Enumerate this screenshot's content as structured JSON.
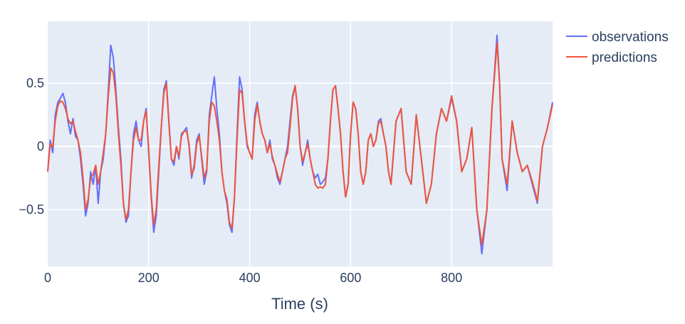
{
  "chart_data": {
    "type": "line",
    "title": "",
    "xlabel": "Time (s)",
    "ylabel": "",
    "xlim": [
      0,
      1000
    ],
    "ylim": [
      -0.95,
      0.99
    ],
    "xticks": [
      0,
      200,
      400,
      600,
      800
    ],
    "xtick_labels": [
      "0",
      "200",
      "400",
      "600",
      "800"
    ],
    "yticks": [
      -0.5,
      0,
      0.5
    ],
    "ytick_labels": [
      "−0.5",
      "0",
      "0.5"
    ],
    "grid": true,
    "legend_position": "top-right",
    "colors": {
      "plot_background": "#e5ecf6",
      "grid": "#ffffff",
      "text": "#2a3f5f"
    },
    "series": [
      {
        "name": "observations",
        "color": "#636efa",
        "x": [
          0,
          5,
          10,
          15,
          20,
          25,
          30,
          35,
          40,
          45,
          50,
          55,
          60,
          65,
          70,
          75,
          80,
          85,
          90,
          95,
          100,
          105,
          110,
          115,
          120,
          125,
          130,
          135,
          140,
          145,
          150,
          155,
          160,
          165,
          170,
          175,
          180,
          185,
          190,
          195,
          200,
          205,
          210,
          215,
          220,
          225,
          230,
          235,
          240,
          245,
          250,
          255,
          260,
          265,
          270,
          275,
          280,
          285,
          290,
          295,
          300,
          305,
          310,
          315,
          320,
          325,
          330,
          335,
          340,
          345,
          350,
          355,
          360,
          365,
          370,
          375,
          380,
          385,
          390,
          395,
          400,
          405,
          410,
          415,
          420,
          425,
          430,
          435,
          440,
          445,
          450,
          455,
          460,
          465,
          470,
          475,
          480,
          485,
          490,
          495,
          500,
          505,
          510,
          515,
          520,
          525,
          530,
          535,
          540,
          545,
          550,
          555,
          560,
          565,
          570,
          575,
          580,
          585,
          590,
          595,
          600,
          605,
          610,
          615,
          620,
          625,
          630,
          635,
          640,
          645,
          650,
          655,
          660,
          665,
          670,
          675,
          680,
          690,
          700,
          710,
          720,
          730,
          740,
          750,
          760,
          770,
          780,
          790,
          800,
          810,
          820,
          830,
          840,
          850,
          860,
          870,
          880,
          890,
          895,
          900,
          910,
          920,
          930,
          940,
          950,
          960,
          970,
          980,
          990,
          1000
        ],
        "y": [
          -0.2,
          0.05,
          -0.05,
          0.25,
          0.35,
          0.38,
          0.42,
          0.35,
          0.2,
          0.1,
          0.22,
          0.08,
          0.05,
          -0.1,
          -0.3,
          -0.55,
          -0.45,
          -0.2,
          -0.3,
          -0.15,
          -0.45,
          -0.2,
          -0.1,
          0.1,
          0.45,
          0.8,
          0.7,
          0.45,
          0.15,
          -0.1,
          -0.45,
          -0.6,
          -0.55,
          -0.2,
          0.1,
          0.2,
          0.05,
          0.0,
          0.2,
          0.3,
          -0.05,
          -0.4,
          -0.68,
          -0.55,
          -0.2,
          0.15,
          0.45,
          0.52,
          0.2,
          -0.1,
          -0.15,
          0.0,
          -0.1,
          0.1,
          0.12,
          0.15,
          0.0,
          -0.25,
          -0.15,
          0.05,
          0.1,
          -0.1,
          -0.3,
          -0.2,
          0.25,
          0.4,
          0.55,
          0.3,
          0.1,
          -0.2,
          -0.35,
          -0.45,
          -0.62,
          -0.68,
          -0.4,
          0.1,
          0.55,
          0.45,
          0.2,
          0.0,
          -0.05,
          -0.1,
          0.25,
          0.35,
          0.2,
          0.1,
          0.05,
          -0.05,
          0.05,
          -0.1,
          -0.15,
          -0.25,
          -0.3,
          -0.2,
          -0.1,
          0.0,
          0.2,
          0.4,
          0.48,
          0.3,
          0.0,
          -0.15,
          -0.05,
          0.05,
          -0.1,
          -0.2,
          -0.25,
          -0.22,
          -0.3,
          -0.28,
          -0.25,
          -0.1,
          0.2,
          0.45,
          0.48,
          0.3,
          0.1,
          -0.2,
          -0.4,
          -0.3,
          0.1,
          0.35,
          0.3,
          0.1,
          -0.2,
          -0.3,
          -0.2,
          0.05,
          0.1,
          0.0,
          0.05,
          0.2,
          0.22,
          0.1,
          0.0,
          -0.2,
          -0.3,
          0.2,
          0.3,
          -0.2,
          -0.3,
          0.25,
          -0.1,
          -0.45,
          -0.3,
          0.1,
          0.3,
          0.2,
          0.38,
          0.2,
          -0.2,
          -0.1,
          0.15,
          -0.5,
          -0.85,
          -0.5,
          0.3,
          0.88,
          0.5,
          -0.1,
          -0.35,
          0.2,
          -0.05,
          -0.2,
          -0.15,
          -0.3,
          -0.45,
          0.0,
          0.15,
          0.35
        ]
      },
      {
        "name": "predictions",
        "color": "#ef553b",
        "x": [
          0,
          5,
          10,
          15,
          20,
          25,
          30,
          35,
          40,
          45,
          50,
          55,
          60,
          65,
          70,
          75,
          80,
          85,
          90,
          95,
          100,
          105,
          110,
          115,
          120,
          125,
          130,
          135,
          140,
          145,
          150,
          155,
          160,
          165,
          170,
          175,
          180,
          185,
          190,
          195,
          200,
          205,
          210,
          215,
          220,
          225,
          230,
          235,
          240,
          245,
          250,
          255,
          260,
          265,
          270,
          275,
          280,
          285,
          290,
          295,
          300,
          305,
          310,
          315,
          320,
          325,
          330,
          335,
          340,
          345,
          350,
          355,
          360,
          365,
          370,
          375,
          380,
          385,
          390,
          395,
          400,
          405,
          410,
          415,
          420,
          425,
          430,
          435,
          440,
          445,
          450,
          455,
          460,
          465,
          470,
          475,
          480,
          485,
          490,
          495,
          500,
          505,
          510,
          515,
          520,
          525,
          530,
          535,
          540,
          545,
          550,
          555,
          560,
          565,
          570,
          575,
          580,
          585,
          590,
          595,
          600,
          605,
          610,
          615,
          620,
          625,
          630,
          635,
          640,
          645,
          650,
          655,
          660,
          665,
          670,
          675,
          680,
          690,
          700,
          710,
          720,
          730,
          740,
          750,
          760,
          770,
          780,
          790,
          800,
          810,
          820,
          830,
          840,
          850,
          860,
          870,
          880,
          890,
          895,
          900,
          910,
          920,
          930,
          940,
          950,
          960,
          970,
          980,
          990,
          1000
        ],
        "y": [
          -0.2,
          0.02,
          0.0,
          0.2,
          0.32,
          0.36,
          0.35,
          0.3,
          0.22,
          0.18,
          0.2,
          0.12,
          0.05,
          -0.05,
          -0.25,
          -0.5,
          -0.42,
          -0.25,
          -0.22,
          -0.15,
          -0.3,
          -0.2,
          -0.05,
          0.1,
          0.4,
          0.62,
          0.58,
          0.4,
          0.1,
          -0.15,
          -0.45,
          -0.58,
          -0.5,
          -0.2,
          0.05,
          0.15,
          0.05,
          0.05,
          0.2,
          0.28,
          -0.02,
          -0.38,
          -0.62,
          -0.5,
          -0.15,
          0.15,
          0.42,
          0.5,
          0.18,
          -0.1,
          -0.12,
          0.0,
          -0.08,
          0.08,
          0.12,
          0.12,
          0.02,
          -0.22,
          -0.18,
          0.02,
          0.08,
          -0.08,
          -0.25,
          -0.18,
          0.2,
          0.35,
          0.32,
          0.2,
          0.05,
          -0.2,
          -0.35,
          -0.42,
          -0.6,
          -0.65,
          -0.4,
          0.05,
          0.45,
          0.42,
          0.2,
          0.02,
          -0.05,
          -0.1,
          0.2,
          0.33,
          0.2,
          0.1,
          0.05,
          -0.05,
          0.02,
          -0.08,
          -0.15,
          -0.22,
          -0.28,
          -0.2,
          -0.1,
          -0.05,
          0.15,
          0.38,
          0.48,
          0.3,
          0.0,
          -0.12,
          -0.05,
          0.02,
          -0.1,
          -0.2,
          -0.3,
          -0.33,
          -0.32,
          -0.33,
          -0.3,
          -0.1,
          0.2,
          0.45,
          0.48,
          0.3,
          0.1,
          -0.2,
          -0.4,
          -0.3,
          0.1,
          0.35,
          0.3,
          0.1,
          -0.2,
          -0.3,
          -0.2,
          0.05,
          0.1,
          0.0,
          0.05,
          0.18,
          0.2,
          0.1,
          0.0,
          -0.2,
          -0.3,
          0.2,
          0.3,
          -0.2,
          -0.3,
          0.25,
          -0.1,
          -0.45,
          -0.3,
          0.1,
          0.3,
          0.2,
          0.4,
          0.2,
          -0.2,
          -0.1,
          0.15,
          -0.5,
          -0.78,
          -0.5,
          0.3,
          0.82,
          0.5,
          -0.1,
          -0.3,
          0.2,
          -0.05,
          -0.2,
          -0.15,
          -0.28,
          -0.43,
          0.0,
          0.15,
          0.33
        ]
      }
    ]
  }
}
